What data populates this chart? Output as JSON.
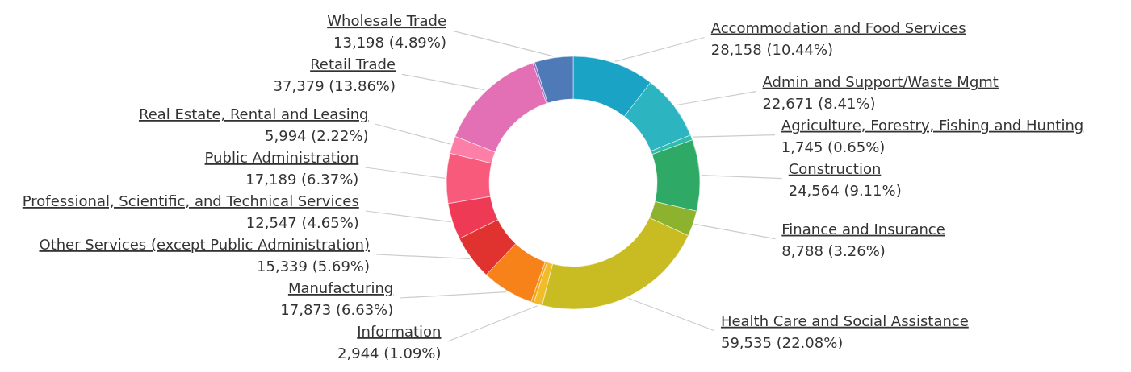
{
  "chart_data": {
    "type": "donut",
    "categories": [
      "Accommodation and Food Services",
      "Admin and Support/Waste Mgmt",
      "Agriculture, Forestry, Fishing and Hunting",
      "Construction",
      "Finance and Insurance",
      "Health Care and Social Assistance",
      "Information",
      null,
      "Manufacturing",
      "Other Services (except Public Administration)",
      "Professional, Scientific, and Technical Services",
      "Public Administration",
      "Real Estate, Rental and Leasing",
      "Retail Trade",
      null,
      "Wholesale Trade"
    ],
    "values": [
      28158,
      22671,
      1745,
      24564,
      8788,
      59535,
      2944,
      1000,
      17873,
      15339,
      12547,
      17189,
      5994,
      37379,
      700,
      13198
    ],
    "value_labels": [
      "28,158 (10.44%)",
      "22,671 (8.41%)",
      "1,745 (0.65%)",
      "24,564 (9.11%)",
      "8,788 (3.26%)",
      "59,535 (22.08%)",
      "2,944 (1.09%)",
      null,
      "17,873 (6.63%)",
      "15,339 (5.69%)",
      "12,547 (4.65%)",
      "17,189 (6.37%)",
      "5,994 (2.22%)",
      "37,379 (13.86%)",
      null,
      "13,198 (4.89%)"
    ],
    "colors": [
      "#1ba3c6",
      "#2cb5c0",
      "#30bcad",
      "#2eaa66",
      "#8db22e",
      "#c8bc22",
      "#f0bc2a",
      "#f8a41a",
      "#f7821a",
      "#e0332f",
      "#ef3a56",
      "#f85a7c",
      "#fd7fa7",
      "#e36fb5",
      "#a56cc0",
      "#4e7bb8"
    ]
  }
}
